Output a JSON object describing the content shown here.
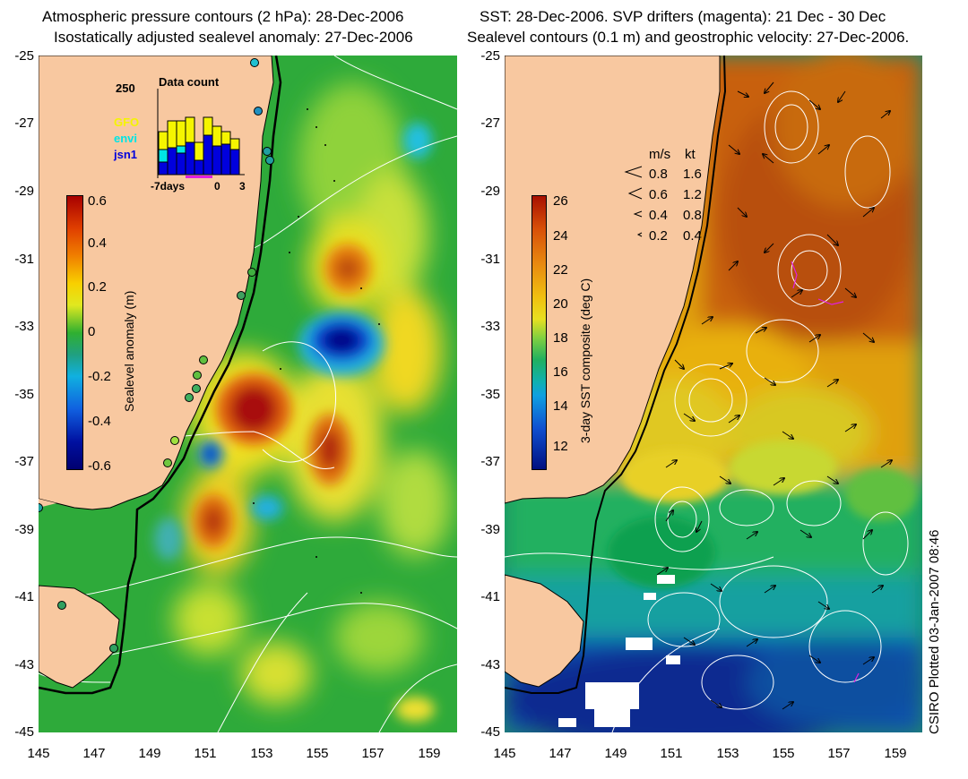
{
  "left_panel": {
    "title_line1": "Atmospheric pressure contours (2 hPa): 28-Dec-2006",
    "title_line2": "Isostatically adjusted sealevel anomaly: 27-Dec-2006",
    "colorbar_label": "Sealevel anomaly (m)",
    "colorbar_ticks": [
      "0.6",
      "0.4",
      "0.2",
      "0",
      "-0.2",
      "-0.4",
      "-0.6"
    ],
    "inset": {
      "title": "Data count",
      "ymax_label": "250",
      "legend": [
        {
          "name": "GFO",
          "color": "#f5f500"
        },
        {
          "name": "envi",
          "color": "#00e5e5"
        },
        {
          "name": "jsn1",
          "color": "#0000dd"
        }
      ],
      "xtick_labels": [
        "-7days",
        "0",
        "3"
      ]
    }
  },
  "right_panel": {
    "title_line1": "SST: 28-Dec-2006. SVP drifters (magenta): 21 Dec - 30 Dec",
    "title_line2": "Sealevel contours (0.1 m) and geostrophic velocity: 27-Dec-2006.",
    "colorbar_label": "3-day SST composite (deg C)",
    "colorbar_ticks": [
      "26",
      "24",
      "22",
      "20",
      "18",
      "16",
      "14",
      "12"
    ],
    "velocity_legend": {
      "header_ms": "m/s",
      "header_kt": "kt",
      "rows": [
        {
          "ms": "0.8",
          "kt": "1.6"
        },
        {
          "ms": "0.6",
          "kt": "1.2"
        },
        {
          "ms": "0.4",
          "kt": "0.8"
        },
        {
          "ms": "0.2",
          "kt": "0.4"
        }
      ]
    }
  },
  "axes": {
    "y_ticks": [
      "-25",
      "-27",
      "-29",
      "-31",
      "-33",
      "-35",
      "-37",
      "-39",
      "-41",
      "-43",
      "-45"
    ],
    "x_ticks": [
      "145",
      "147",
      "149",
      "151",
      "153",
      "155",
      "157",
      "159"
    ]
  },
  "footer": {
    "plotted_label": "CSIRO Plotted 03-Jan-2007 08:46"
  },
  "colors": {
    "land": "#f8c8a0",
    "coastline": "#000000",
    "contour": "#ffffff"
  }
}
